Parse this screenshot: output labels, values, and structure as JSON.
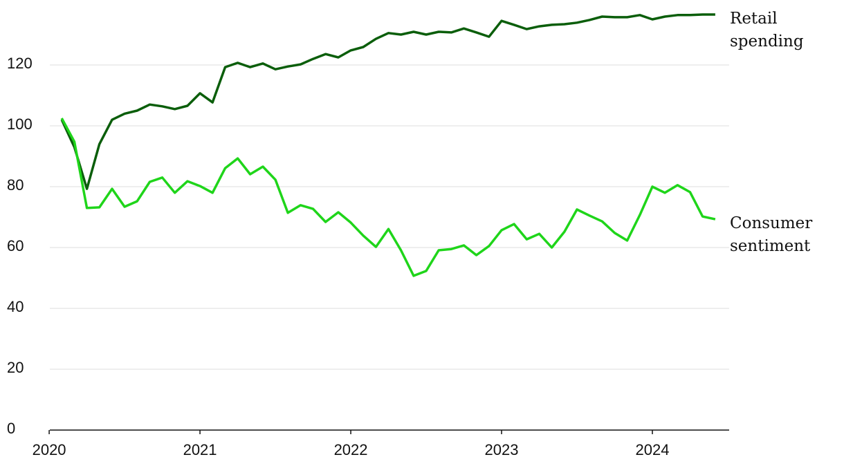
{
  "chart_data": {
    "type": "line",
    "x": [
      2020.083,
      2020.167,
      2020.25,
      2020.333,
      2020.417,
      2020.5,
      2020.583,
      2020.667,
      2020.75,
      2020.833,
      2020.917,
      2021,
      2021.083,
      2021.167,
      2021.25,
      2021.333,
      2021.417,
      2021.5,
      2021.583,
      2021.667,
      2021.75,
      2021.833,
      2021.917,
      2022,
      2022.083,
      2022.167,
      2022.25,
      2022.333,
      2022.417,
      2022.5,
      2022.583,
      2022.667,
      2022.75,
      2022.833,
      2022.917,
      2023,
      2023.083,
      2023.167,
      2023.25,
      2023.333,
      2023.417,
      2023.5,
      2023.583,
      2023.667,
      2023.75,
      2023.833,
      2023.917,
      2024,
      2024.083,
      2024.167,
      2024.25,
      2024.333,
      2024.417
    ],
    "series": [
      {
        "name": "Retail spending",
        "color": "#0b5e0b",
        "values": [
          102,
          93,
          79.3,
          94,
          102,
          104,
          105,
          107,
          106.4,
          105.5,
          106.6,
          110.7,
          107.7,
          119.3,
          120.7,
          119.3,
          120.5,
          118.6,
          119.5,
          120.2,
          122,
          123.6,
          122.5,
          124.8,
          125.9,
          128.6,
          130.5,
          130,
          130.9,
          130,
          130.9,
          130.7,
          132,
          130.7,
          129.3,
          134.5,
          133.2,
          131.8,
          132.7,
          133.2,
          133.4,
          133.9,
          134.8,
          135.9,
          135.7,
          135.7,
          136.4,
          135,
          135.9,
          136.4,
          136.4,
          136.6,
          136.6
        ]
      },
      {
        "name": "Consumer sentiment",
        "color": "#1fd51a",
        "values": [
          102.5,
          94.8,
          73,
          73.2,
          79.3,
          73.4,
          75.2,
          81.6,
          83,
          78,
          81.8,
          80.2,
          78,
          86.1,
          89.3,
          84.1,
          86.6,
          82.3,
          71.4,
          73.9,
          72.7,
          68.4,
          71.6,
          68.2,
          63.9,
          60.2,
          66.1,
          59.1,
          50.7,
          52.3,
          59.1,
          59.5,
          60.7,
          57.5,
          60.5,
          65.7,
          67.7,
          62.7,
          64.5,
          60,
          65.2,
          72.5,
          70.5,
          68.6,
          64.8,
          62.3,
          70.7,
          80,
          78,
          80.5,
          78.2,
          70.2,
          69.3
        ]
      }
    ],
    "xlim": [
      2019.94,
      2024.5
    ],
    "xticks": [
      2020,
      2021,
      2022,
      2023,
      2024
    ],
    "ylim": [
      0,
      138
    ],
    "yticks": [
      0,
      20,
      40,
      60,
      80,
      100,
      120
    ],
    "grid": true
  }
}
